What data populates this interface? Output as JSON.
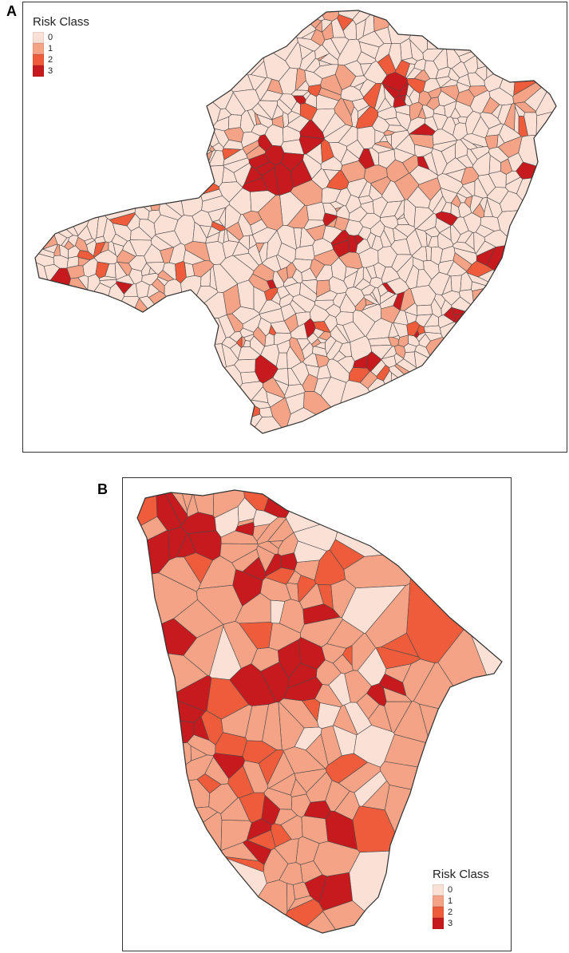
{
  "colors": {
    "class_0": "#fbe0d6",
    "class_1": "#f4a387",
    "class_2": "#ee5c3c",
    "class_3": "#c71a1e",
    "border": "#333333"
  },
  "panel_a": {
    "label": "A",
    "legend": {
      "title": "Risk Class",
      "items": [
        "0",
        "1",
        "2",
        "3"
      ]
    }
  },
  "panel_b": {
    "label": "B",
    "legend": {
      "title": "Risk Class",
      "items": [
        "0",
        "1",
        "2",
        "3"
      ]
    }
  }
}
